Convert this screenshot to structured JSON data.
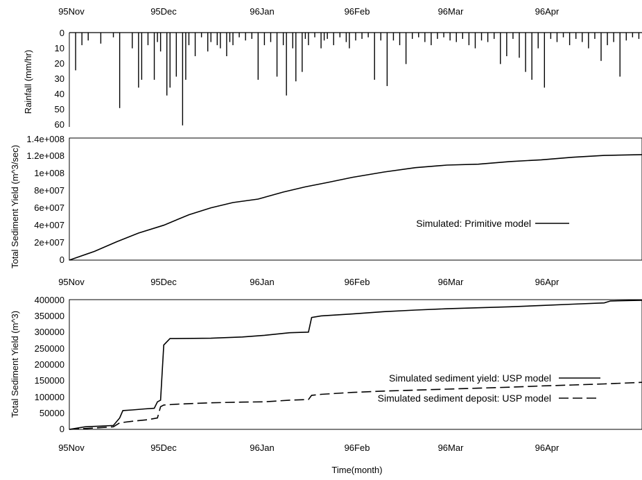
{
  "chart_data": [
    {
      "type": "bar",
      "orientation": "inverted",
      "ylabel": "Rainfall (mm/hr)",
      "x_tick_labels": [
        "95Nov",
        "95Dec",
        "96Jan",
        "96Feb",
        "96Mar",
        "96Apr"
      ],
      "y_tick_labels": [
        "0",
        "10",
        "20",
        "30",
        "40",
        "50",
        "60"
      ],
      "ylim": [
        0,
        60
      ],
      "xlim_days": [
        0,
        182
      ],
      "x_tick_days": [
        0,
        30,
        61,
        92,
        121,
        152
      ],
      "x_days": [
        2,
        4,
        6,
        10,
        14,
        16,
        20,
        22,
        23,
        25,
        27,
        28,
        29,
        31,
        32,
        34,
        36,
        37,
        38,
        40,
        42,
        44,
        45,
        47,
        48,
        50,
        51,
        52,
        54,
        56,
        58,
        60,
        62,
        64,
        66,
        68,
        69,
        71,
        72,
        74,
        75,
        76,
        78,
        80,
        81,
        82,
        84,
        86,
        88,
        89,
        91,
        93,
        95,
        97,
        99,
        101,
        103,
        105,
        107,
        109,
        111,
        113,
        115,
        117,
        119,
        121,
        123,
        125,
        127,
        129,
        131,
        133,
        135,
        137,
        139,
        141,
        143,
        145,
        147,
        149,
        151,
        153,
        155,
        157,
        159,
        161,
        163,
        165,
        167,
        169,
        171,
        173,
        175,
        177,
        179,
        181
      ],
      "values": [
        24,
        8,
        5,
        7,
        3,
        48,
        10,
        35,
        30,
        8,
        30,
        6,
        12,
        40,
        35,
        28,
        59,
        30,
        8,
        15,
        3,
        12,
        6,
        8,
        10,
        15,
        6,
        8,
        3,
        5,
        4,
        30,
        8,
        6,
        28,
        8,
        40,
        10,
        31,
        25,
        4,
        8,
        3,
        10,
        5,
        4,
        8,
        3,
        6,
        10,
        5,
        4,
        3,
        30,
        5,
        34,
        5,
        8,
        20,
        4,
        3,
        6,
        8,
        4,
        3,
        5,
        6,
        4,
        8,
        10,
        5,
        6,
        4,
        20,
        15,
        4,
        16,
        25,
        30,
        10,
        35,
        4,
        6,
        3,
        8,
        4,
        6,
        10,
        4,
        18,
        8,
        6,
        28,
        5,
        3,
        4
      ]
    },
    {
      "type": "line",
      "ylabel": "Total Sediment Yield (m^3/sec)",
      "y_tick_labels": [
        "0",
        "2e+007",
        "4e+007",
        "6e+007",
        "8e+007",
        "1e+008",
        "1.2e+008",
        "1.4e+008"
      ],
      "ylim": [
        0,
        140000000
      ],
      "x_tick_labels": [
        "95Nov",
        "95Dec",
        "96Jan",
        "96Feb",
        "96Mar",
        "96Apr"
      ],
      "xlim_days": [
        0,
        182
      ],
      "x_tick_days": [
        0,
        30,
        61,
        92,
        121,
        152
      ],
      "series": [
        {
          "name": "Simulated: Primitive model",
          "x_days": [
            0,
            8,
            15,
            22,
            30,
            38,
            45,
            52,
            60,
            68,
            75,
            82,
            90,
            100,
            110,
            120,
            130,
            140,
            150,
            160,
            170,
            182
          ],
          "values": [
            0,
            10000000,
            21000000,
            31000000,
            40000000,
            52000000,
            60000000,
            66000000,
            70000000,
            78000000,
            84000000,
            89000000,
            95000000,
            101000000,
            106000000,
            109000000,
            110000000,
            113000000,
            115000000,
            118000000,
            120000000,
            121000000
          ]
        }
      ],
      "legend_position": "center-right"
    },
    {
      "type": "line",
      "xlabel": "Time(month)",
      "ylabel": "Total Sediment Yield (m^3)",
      "y_tick_labels": [
        "0",
        "50000",
        "100000",
        "150000",
        "200000",
        "250000",
        "300000",
        "350000",
        "400000"
      ],
      "ylim": [
        0,
        400000
      ],
      "x_tick_labels": [
        "95Nov",
        "95Dec",
        "96Jan",
        "96Feb",
        "96Mar",
        "96Apr"
      ],
      "xlim_days": [
        0,
        182
      ],
      "x_tick_days": [
        0,
        30,
        61,
        92,
        121,
        152
      ],
      "series": [
        {
          "name": "Simulated sediment yield: USP model",
          "dash": "solid",
          "x_days": [
            0,
            5,
            10,
            14,
            16,
            17,
            20,
            24,
            27,
            28,
            29,
            30,
            32,
            45,
            55,
            62,
            70,
            76,
            77,
            80,
            90,
            100,
            110,
            120,
            130,
            140,
            150,
            160,
            170,
            172,
            182
          ],
          "values": [
            0,
            8000,
            10000,
            12000,
            35000,
            58000,
            60000,
            63000,
            65000,
            85000,
            90000,
            260000,
            280000,
            281000,
            285000,
            290000,
            298000,
            300000,
            345000,
            350000,
            356000,
            363000,
            368000,
            372000,
            375000,
            378000,
            382000,
            386000,
            390000,
            396000,
            398000
          ]
        },
        {
          "name": "Simulated sediment deposit: USP model",
          "dash": "dashed",
          "x_days": [
            0,
            8,
            14,
            16,
            20,
            25,
            28,
            29,
            30,
            35,
            45,
            55,
            62,
            70,
            76,
            77,
            80,
            90,
            100,
            110,
            120,
            130,
            140,
            150,
            160,
            170,
            182
          ],
          "values": [
            0,
            4000,
            8000,
            20000,
            25000,
            30000,
            35000,
            70000,
            75000,
            78000,
            82000,
            84000,
            85000,
            90000,
            92000,
            105000,
            108000,
            114000,
            118000,
            121000,
            124000,
            127000,
            130000,
            134000,
            137000,
            140000,
            145000
          ]
        }
      ],
      "legend_position": "center-right"
    }
  ]
}
